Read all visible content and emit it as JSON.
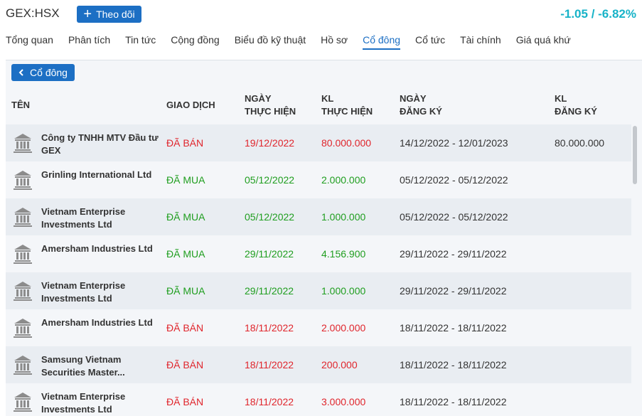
{
  "header": {
    "symbol": "GEX:HSX",
    "follow_button": "Theo dõi",
    "change": "-1.05 / -6.82%",
    "change_color": "#17b3c8"
  },
  "tabs": [
    "Tổng quan",
    "Phân tích",
    "Tin tức",
    "Cộng đồng",
    "Biểu đồ kỹ thuật",
    "Hồ sơ",
    "Cổ đông",
    "Cổ tức",
    "Tài chính",
    "Giá quá khứ"
  ],
  "active_tab": 6,
  "back_button": "Cổ đông",
  "table": {
    "columns": [
      [
        "TÊN"
      ],
      [
        "GIAO DỊCH"
      ],
      [
        "NGÀY",
        "THỰC HIỆN"
      ],
      [
        "KL",
        "THỰC HIỆN"
      ],
      [
        "NGÀY",
        "ĐĂNG KÝ"
      ],
      [
        "KL",
        "ĐĂNG KÝ"
      ]
    ],
    "rows": [
      {
        "name": "Công ty TNHH MTV Đầu tư GEX",
        "action": "ĐÃ BÁN",
        "date": "19/12/2022",
        "volume": "80.000.000",
        "reg_date": "14/12/2022 - 12/01/2023",
        "reg_volume": "80.000.000",
        "color": "#e0252c"
      },
      {
        "name": "Grinling International Ltd",
        "action": "ĐÃ MUA",
        "date": "05/12/2022",
        "volume": "2.000.000",
        "reg_date": "05/12/2022 - 05/12/2022",
        "color": "#1f9e1f"
      },
      {
        "name": "Vietnam Enterprise Investments Ltd",
        "action": "ĐÃ MUA",
        "date": "05/12/2022",
        "volume": "1.000.000",
        "reg_date": "05/12/2022 - 05/12/2022",
        "color": "#1f9e1f"
      },
      {
        "name": "Amersham Industries Ltd",
        "action": "ĐÃ MUA",
        "date": "29/11/2022",
        "volume": "4.156.900",
        "reg_date": "29/11/2022 - 29/11/2022",
        "color": "#1f9e1f"
      },
      {
        "name": "Vietnam Enterprise Investments Ltd",
        "action": "ĐÃ MUA",
        "date": "29/11/2022",
        "volume": "1.000.000",
        "reg_date": "29/11/2022 - 29/11/2022",
        "color": "#1f9e1f"
      },
      {
        "name": "Amersham Industries Ltd",
        "action": "ĐÃ BÁN",
        "date": "18/11/2022",
        "volume": "2.000.000",
        "reg_date": "18/11/2022 - 18/11/2022",
        "color": "#e0252c"
      },
      {
        "name": "Samsung Vietnam Securities Master...",
        "action": "ĐÃ BÁN",
        "date": "18/11/2022",
        "volume": "200.000",
        "reg_date": "18/11/2022 - 18/11/2022",
        "color": "#e0252c"
      },
      {
        "name": "Vietnam Enterprise Investments Ltd",
        "action": "ĐÃ BÁN",
        "date": "18/11/2022",
        "volume": "3.000.000",
        "reg_date": "18/11/2022 - 18/11/2022",
        "color": "#e0252c"
      }
    ]
  }
}
